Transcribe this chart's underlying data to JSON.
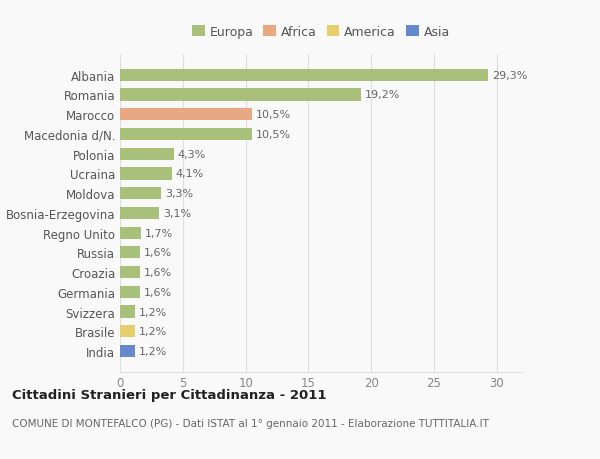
{
  "countries": [
    "Albania",
    "Romania",
    "Marocco",
    "Macedonia d/N.",
    "Polonia",
    "Ucraina",
    "Moldova",
    "Bosnia-Erzegovina",
    "Regno Unito",
    "Russia",
    "Croazia",
    "Germania",
    "Svizzera",
    "Brasile",
    "India"
  ],
  "values": [
    29.3,
    19.2,
    10.5,
    10.5,
    4.3,
    4.1,
    3.3,
    3.1,
    1.7,
    1.6,
    1.6,
    1.6,
    1.2,
    1.2,
    1.2
  ],
  "labels": [
    "29,3%",
    "19,2%",
    "10,5%",
    "10,5%",
    "4,3%",
    "4,1%",
    "3,3%",
    "3,1%",
    "1,7%",
    "1,6%",
    "1,6%",
    "1,6%",
    "1,2%",
    "1,2%",
    "1,2%"
  ],
  "continents": [
    "Europa",
    "Europa",
    "Africa",
    "Europa",
    "Europa",
    "Europa",
    "Europa",
    "Europa",
    "Europa",
    "Europa",
    "Europa",
    "Europa",
    "Europa",
    "America",
    "Asia"
  ],
  "colors": {
    "Europa": "#a8c07a",
    "Africa": "#e8a882",
    "America": "#e8cf6e",
    "Asia": "#6688cc"
  },
  "xlim": [
    0,
    32
  ],
  "xticks": [
    0,
    5,
    10,
    15,
    20,
    25,
    30
  ],
  "title": "Cittadini Stranieri per Cittadinanza - 2011",
  "subtitle": "COMUNE DI MONTEFALCO (PG) - Dati ISTAT al 1° gennaio 2011 - Elaborazione TUTTITALIA.IT",
  "background_color": "#f9f9f9",
  "grid_color": "#dddddd",
  "legend_order": [
    "Europa",
    "Africa",
    "America",
    "Asia"
  ]
}
